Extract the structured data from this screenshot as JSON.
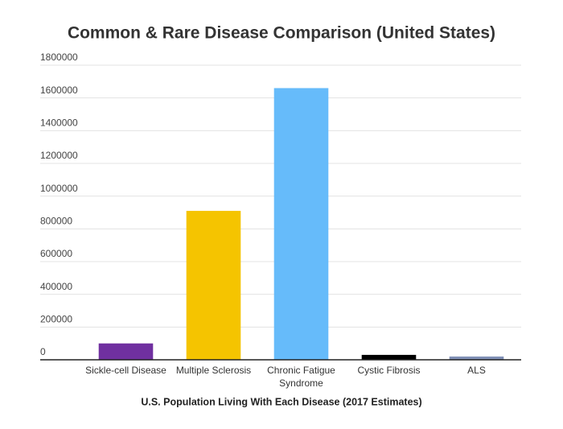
{
  "chart_data": {
    "type": "bar",
    "title": "Common & Rare Disease Comparison (United States)",
    "x_label": "U.S. Population Living With Each Disease (2017 Estimates)",
    "categories": [
      "Sickle-cell Disease",
      "Multiple Sclerosis",
      "Chronic Fatigue Syndrome",
      "Cystic Fibrosis",
      "ALS"
    ],
    "values": [
      100000,
      910000,
      1660000,
      30000,
      20000
    ],
    "colors": [
      "#7030a0",
      "#f5c400",
      "#66bbfa",
      "#000000",
      "#7f8fb5"
    ],
    "ylim": [
      0,
      1800000
    ],
    "yticks": [
      0,
      200000,
      400000,
      600000,
      800000,
      1000000,
      1200000,
      1400000,
      1600000,
      1800000
    ],
    "grid": true
  }
}
